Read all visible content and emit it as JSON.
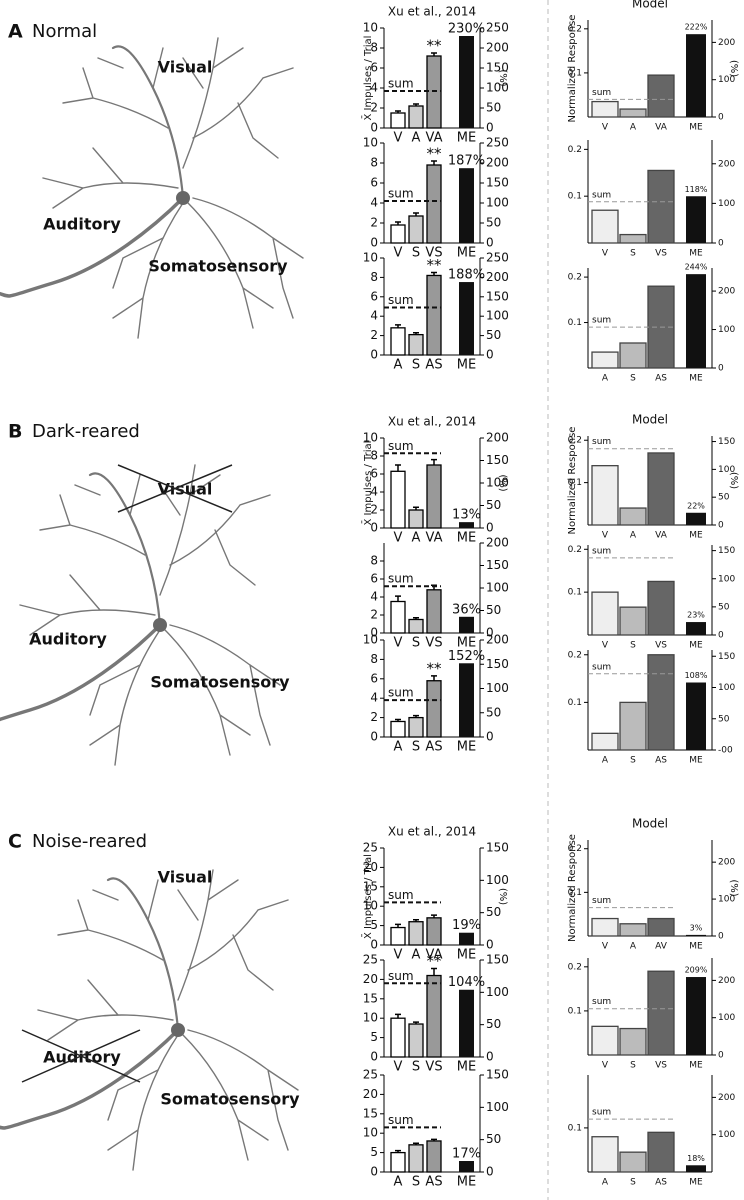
{
  "panels": [
    {
      "letter": "A",
      "condition": "Normal",
      "neuron_labels": [
        "Visual",
        "Auditory",
        "Somatosensory"
      ],
      "experiment": {
        "title": "Xu et al., 2014",
        "ylabel": "X̄ Impulses / Trial",
        "y2label": "(%)",
        "subplots": [
          {
            "categories": [
              "V",
              "A",
              "VA"
            ],
            "values": [
              1.5,
              2.2,
              7.2
            ],
            "errors": [
              0.2,
              0.2,
              0.3
            ],
            "colors": [
              "#ffffff",
              "#cccccc",
              "#999999"
            ],
            "sum": 3.7,
            "sum_label": "sum",
            "significance": "**",
            "me_category": "ME",
            "me": 230,
            "me_label": "230%",
            "me_color": "#111111",
            "ylim": [
              0,
              10
            ],
            "yticks": [
              0,
              2,
              4,
              6,
              8,
              10
            ],
            "y2lim": [
              0,
              250
            ],
            "y2ticks": [
              0,
              50,
              100,
              150,
              200,
              250
            ]
          },
          {
            "categories": [
              "V",
              "S",
              "VS"
            ],
            "values": [
              1.8,
              2.7,
              7.8
            ],
            "errors": [
              0.3,
              0.3,
              0.4
            ],
            "colors": [
              "#ffffff",
              "#cccccc",
              "#999999"
            ],
            "sum": 4.2,
            "sum_label": "sum",
            "significance": "**",
            "me_category": "ME",
            "me": 187,
            "me_label": "187%",
            "me_color": "#111111",
            "ylim": [
              0,
              10
            ],
            "yticks": [
              0,
              2,
              4,
              6,
              8,
              10
            ],
            "y2lim": [
              0,
              250
            ],
            "y2ticks": [
              0,
              50,
              100,
              150,
              200,
              250
            ]
          },
          {
            "categories": [
              "A",
              "S",
              "AS"
            ],
            "values": [
              2.8,
              2.1,
              8.2
            ],
            "errors": [
              0.3,
              0.2,
              0.3
            ],
            "colors": [
              "#ffffff",
              "#cccccc",
              "#999999"
            ],
            "sum": 4.9,
            "sum_label": "sum",
            "significance": "**",
            "me_category": "ME",
            "me": 188,
            "me_label": "188%",
            "me_color": "#111111",
            "ylim": [
              0,
              10
            ],
            "yticks": [
              0,
              2,
              4,
              6,
              8,
              10
            ],
            "y2lim": [
              0,
              250
            ],
            "y2ticks": [
              0,
              50,
              100,
              150,
              200,
              250
            ]
          }
        ]
      },
      "model": {
        "title": "Model",
        "ylabel": "Normalized Response",
        "y2label": "(%)",
        "subplots": [
          {
            "categories": [
              "V",
              "A",
              "VA"
            ],
            "values": [
              0.035,
              0.018,
              0.095
            ],
            "colors": [
              "#eeeeee",
              "#bbbbbb",
              "#666666"
            ],
            "sum": 0.04,
            "sum_label": "sum",
            "me_category": "ME",
            "me": 222,
            "me_label": "222%",
            "me_color": "#111111",
            "ylim": [
              0,
              0.22
            ],
            "yticks": [
              0.1,
              0.2
            ],
            "y2lim": [
              0,
              260
            ],
            "y2ticks": [
              0,
              100,
              200
            ]
          },
          {
            "categories": [
              "V",
              "S",
              "VS"
            ],
            "values": [
              0.07,
              0.018,
              0.155
            ],
            "colors": [
              "#eeeeee",
              "#bbbbbb",
              "#666666"
            ],
            "sum": 0.088,
            "sum_label": "sum",
            "me_category": "ME",
            "me": 118,
            "me_label": "118%",
            "me_color": "#111111",
            "ylim": [
              0,
              0.22
            ],
            "yticks": [
              0.1,
              0.2
            ],
            "y2lim": [
              0,
              260
            ],
            "y2ticks": [
              0,
              100,
              200
            ]
          },
          {
            "categories": [
              "A",
              "S",
              "AS"
            ],
            "values": [
              0.035,
              0.055,
              0.18
            ],
            "colors": [
              "#eeeeee",
              "#bbbbbb",
              "#666666"
            ],
            "sum": 0.09,
            "sum_label": "sum",
            "me_category": "ME",
            "me": 244,
            "me_label": "244%",
            "me_color": "#111111",
            "ylim": [
              0,
              0.22
            ],
            "yticks": [
              0.1,
              0.2
            ],
            "y2lim": [
              0,
              260
            ],
            "y2ticks": [
              0,
              100,
              200
            ]
          }
        ]
      }
    },
    {
      "letter": "B",
      "condition": "Dark-reared",
      "neuron_labels": [
        "Visual",
        "Auditory",
        "Somatosensory"
      ],
      "crossed_label": "Visual",
      "experiment": {
        "title": "Xu et al., 2014",
        "ylabel": "X̄ Impulses / Trial",
        "y2label": "(%)",
        "subplots": [
          {
            "categories": [
              "V",
              "A",
              "VA"
            ],
            "values": [
              6.3,
              2.0,
              7.0
            ],
            "errors": [
              0.7,
              0.3,
              0.6
            ],
            "colors": [
              "#ffffff",
              "#cccccc",
              "#999999"
            ],
            "sum": 8.3,
            "sum_label": "sum",
            "me_category": "ME",
            "me": 13,
            "me_label": "13%",
            "me_color": "#111111",
            "ylim": [
              0,
              10
            ],
            "yticks": [
              0,
              2,
              4,
              6,
              8,
              10
            ],
            "y2lim": [
              0,
              200
            ],
            "y2ticks": [
              0,
              50,
              100,
              150,
              200
            ]
          },
          {
            "categories": [
              "V",
              "S",
              "VS"
            ],
            "values": [
              3.5,
              1.5,
              4.8
            ],
            "errors": [
              0.6,
              0.2,
              0.5
            ],
            "colors": [
              "#ffffff",
              "#cccccc",
              "#999999"
            ],
            "sum": 5.2,
            "sum_label": "sum",
            "me_category": "ME",
            "me": 36,
            "me_label": "36%",
            "me_color": "#111111",
            "ylim": [
              0,
              10
            ],
            "yticks": [
              0,
              2,
              4,
              6,
              8
            ],
            "y2lim": [
              0,
              200
            ],
            "y2ticks": [
              0,
              50,
              100,
              150,
              200
            ]
          },
          {
            "categories": [
              "A",
              "S",
              "AS"
            ],
            "values": [
              1.6,
              2.0,
              5.8
            ],
            "errors": [
              0.2,
              0.2,
              0.5
            ],
            "colors": [
              "#ffffff",
              "#cccccc",
              "#999999"
            ],
            "sum": 3.8,
            "sum_label": "sum",
            "significance": "**",
            "me_category": "ME",
            "me": 152,
            "me_label": "152%",
            "me_color": "#111111",
            "ylim": [
              0,
              10
            ],
            "yticks": [
              0,
              2,
              4,
              6,
              8,
              10
            ],
            "y2lim": [
              0,
              200
            ],
            "y2ticks": [
              0,
              50,
              100,
              150,
              200
            ]
          }
        ]
      },
      "model": {
        "title": "Model",
        "ylabel": "Normalized Response",
        "y2label": "(%)",
        "subplots": [
          {
            "categories": [
              "V",
              "A",
              "VA"
            ],
            "values": [
              0.14,
              0.04,
              0.17
            ],
            "colors": [
              "#eeeeee",
              "#bbbbbb",
              "#666666"
            ],
            "sum": 0.18,
            "sum_label": "sum",
            "me_category": "ME",
            "me": 22,
            "me_label": "22%",
            "me_color": "#111111",
            "ylim": [
              0,
              0.21
            ],
            "yticks": [
              0.1,
              0.2
            ],
            "y2lim": [
              0,
              160
            ],
            "y2ticks": [
              0,
              50,
              100,
              150
            ]
          },
          {
            "categories": [
              "V",
              "S",
              "VS"
            ],
            "values": [
              0.1,
              0.065,
              0.125
            ],
            "colors": [
              "#eeeeee",
              "#bbbbbb",
              "#666666"
            ],
            "sum": 0.18,
            "sum_label": "sum",
            "me_category": "ME",
            "me": 23,
            "me_label": "23%",
            "me_color": "#111111",
            "ylim": [
              0,
              0.21
            ],
            "yticks": [
              0.1,
              0.2
            ],
            "y2lim": [
              0,
              160
            ],
            "y2ticks": [
              0,
              50,
              100,
              150
            ]
          },
          {
            "categories": [
              "A",
              "S",
              "AS"
            ],
            "values": [
              0.035,
              0.1,
              0.2
            ],
            "colors": [
              "#eeeeee",
              "#bbbbbb",
              "#666666"
            ],
            "sum": 0.16,
            "sum_label": "sum",
            "me_category": "ME",
            "me": 108,
            "me_label": "108%",
            "me_color": "#111111",
            "ylim": [
              0,
              0.21
            ],
            "yticks": [
              0.1,
              0.2
            ],
            "y2lim": [
              0,
              160
            ],
            "y2ticks": [
              {
                "value": 0,
                "label": "-00"
              },
              50,
              100,
              150
            ]
          }
        ]
      }
    },
    {
      "letter": "C",
      "condition": "Noise-reared",
      "neuron_labels": [
        "Visual",
        "Auditory",
        "Somatosensory"
      ],
      "crossed_label": "Auditory",
      "experiment": {
        "title": "Xu et al., 2014",
        "ylabel": "X̄ Impulses / Trial",
        "y2label": "(%)",
        "subplots": [
          {
            "categories": [
              "V",
              "A",
              "VA"
            ],
            "values": [
              4.5,
              6.0,
              7.0
            ],
            "errors": [
              0.8,
              0.5,
              0.7
            ],
            "colors": [
              "#ffffff",
              "#cccccc",
              "#999999"
            ],
            "sum": 11,
            "sum_label": "sum",
            "me_category": "ME",
            "me": 19,
            "me_label": "19%",
            "me_color": "#111111",
            "ylim": [
              0,
              25
            ],
            "yticks": [
              0,
              5,
              10,
              15,
              20,
              25
            ],
            "y2lim": [
              0,
              150
            ],
            "y2ticks": [
              0,
              50,
              100,
              150
            ]
          },
          {
            "categories": [
              "V",
              "S",
              "VS"
            ],
            "values": [
              10,
              8.5,
              21
            ],
            "errors": [
              1.0,
              0.5,
              1.8
            ],
            "colors": [
              "#ffffff",
              "#cccccc",
              "#999999"
            ],
            "sum": 19,
            "sum_label": "sum",
            "significance": "**",
            "me_category": "ME",
            "me": 104,
            "me_label": "104%",
            "me_color": "#111111",
            "ylim": [
              0,
              25
            ],
            "yticks": [
              0,
              5,
              10,
              15,
              20,
              25
            ],
            "y2lim": [
              0,
              150
            ],
            "y2ticks": [
              0,
              50,
              100,
              150
            ]
          },
          {
            "categories": [
              "A",
              "S",
              "AS"
            ],
            "values": [
              5.0,
              7.0,
              8.0
            ],
            "errors": [
              0.5,
              0.4,
              0.4
            ],
            "colors": [
              "#ffffff",
              "#cccccc",
              "#999999"
            ],
            "sum": 11.5,
            "sum_label": "sum",
            "me_category": "ME",
            "me": 17,
            "me_label": "17%",
            "me_color": "#111111",
            "ylim": [
              0,
              25
            ],
            "yticks": [
              0,
              5,
              10,
              15,
              20,
              25
            ],
            "y2lim": [
              0,
              150
            ],
            "y2ticks": [
              0,
              50,
              100,
              150
            ]
          }
        ]
      },
      "model": {
        "title": "Model",
        "ylabel": "Normalized Response",
        "y2label": "(%)",
        "subplots": [
          {
            "categories": [
              "V",
              "A",
              "AV"
            ],
            "values": [
              0.04,
              0.028,
              0.04
            ],
            "colors": [
              "#eeeeee",
              "#bbbbbb",
              "#666666"
            ],
            "sum": 0.065,
            "sum_label": "sum",
            "me_category": "ME",
            "me": 3,
            "me_label": "3%",
            "me_color": "#111111",
            "ylim": [
              0,
              0.22
            ],
            "yticks": [
              0.1,
              0.2
            ],
            "y2lim": [
              0,
              260
            ],
            "y2ticks": [
              0,
              100,
              200
            ]
          },
          {
            "categories": [
              "V",
              "S",
              "VS"
            ],
            "values": [
              0.065,
              0.06,
              0.19
            ],
            "colors": [
              "#eeeeee",
              "#bbbbbb",
              "#666666"
            ],
            "sum": 0.105,
            "sum_label": "sum",
            "me_category": "ME",
            "me": 209,
            "me_label": "209%",
            "me_color": "#111111",
            "ylim": [
              0,
              0.22
            ],
            "yticks": [
              0.1,
              0.2
            ],
            "y2lim": [
              0,
              260
            ],
            "y2ticks": [
              0,
              100,
              200
            ]
          },
          {
            "categories": [
              "A",
              "S",
              "AS"
            ],
            "values": [
              0.08,
              0.045,
              0.09
            ],
            "colors": [
              "#eeeeee",
              "#bbbbbb",
              "#666666"
            ],
            "sum": 0.12,
            "sum_label": "sum",
            "me_category": "ME",
            "me": 18,
            "me_label": "18%",
            "me_color": "#111111",
            "ylim": [
              0,
              0.22
            ],
            "yticks": [
              0.1
            ],
            "y2lim": [
              0,
              260
            ],
            "y2ticks": [
              100,
              200
            ]
          }
        ]
      }
    }
  ]
}
